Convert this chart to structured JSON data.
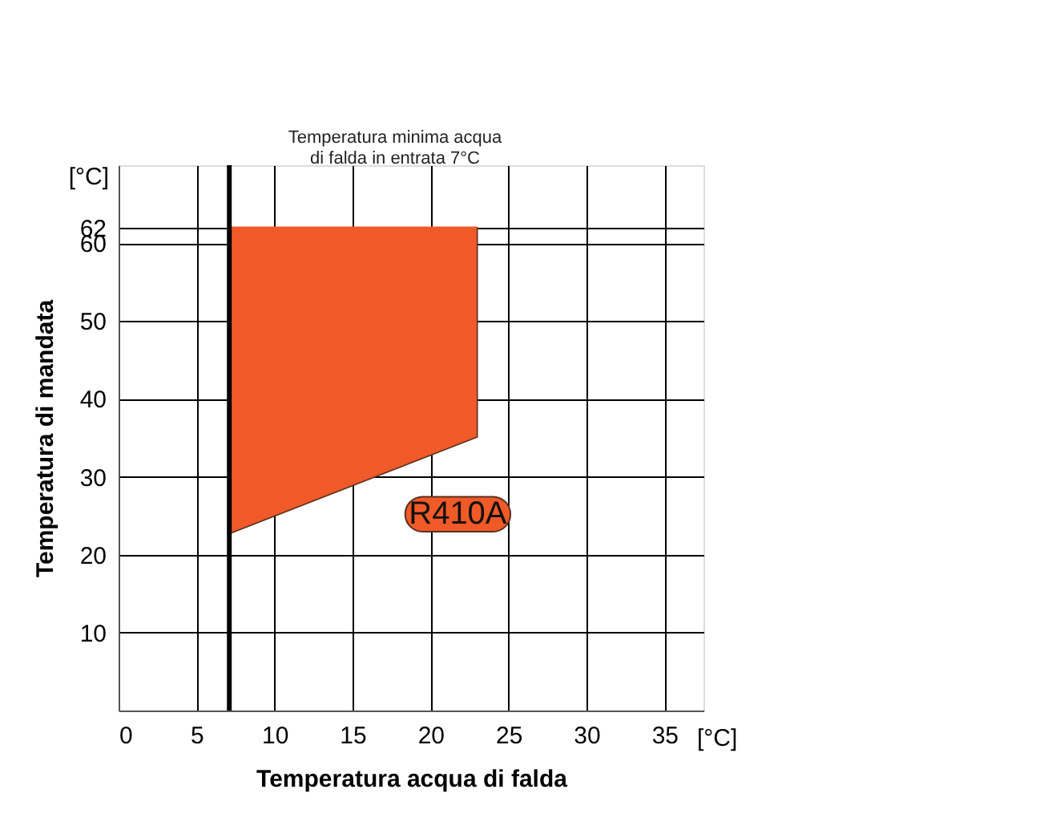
{
  "chart_data": {
    "type": "line",
    "xlabel": "Temperatura acqua di falda",
    "ylabel": "Temperatura di mandata",
    "x": [
      7.1,
      23
    ],
    "series": [
      {
        "color": "#f05a28",
        "values": [
          62,
          62
        ],
        "lower": [
          22.7,
          35.1
        ],
        "upper": [
          62,
          62
        ]
      }
    ],
    "xlim": [
      0,
      37.5
    ],
    "ylim": [
      0,
      70
    ],
    "xticks": [
      0,
      5,
      10,
      15,
      20,
      25,
      30,
      35
    ],
    "yticks": [
      10,
      20,
      30,
      40,
      50,
      60,
      62
    ],
    "grid": true,
    "ref_lines": [
      {
        "axis": "x",
        "value": 7.1,
        "label": "Temperatura minima acqua\ndi falda in entrata 7°C",
        "color": "#000000"
      }
    ],
    "annotations": [
      "[°C]",
      "[°C]",
      "R410A"
    ]
  }
}
